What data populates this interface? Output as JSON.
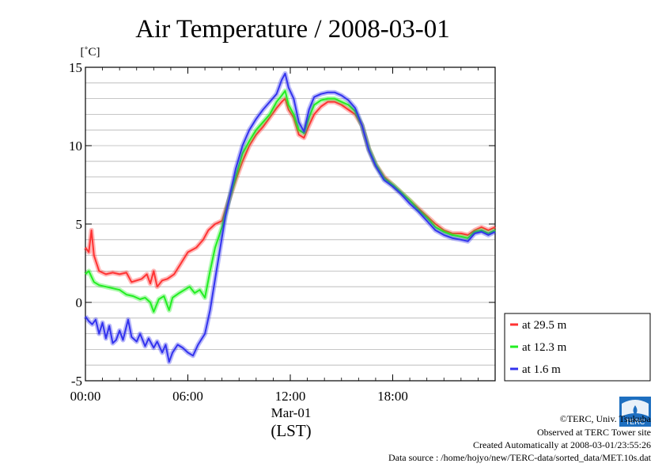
{
  "chart_data": {
    "type": "line",
    "title": "Air Temperature / 2008-03-01",
    "ylabel": "[˚C]",
    "xlabel": "(LST)",
    "x_sublabel": "Mar-01",
    "xlim": [
      0,
      24
    ],
    "ylim": [
      -5,
      15
    ],
    "yticks": [
      15,
      10,
      5,
      0,
      -5
    ],
    "xticks": [
      {
        "value": 0,
        "label": "00:00"
      },
      {
        "value": 6,
        "label": "06:00"
      },
      {
        "value": 12,
        "label": "12:00"
      },
      {
        "value": 18,
        "label": "18:00"
      }
    ],
    "grid": true,
    "legend_position": "bottom-right outside",
    "series": [
      {
        "name": "at 29.5 m",
        "color": "#ff3333",
        "points": [
          [
            0,
            3.5
          ],
          [
            0.2,
            3.2
          ],
          [
            0.35,
            4.6
          ],
          [
            0.5,
            3.0
          ],
          [
            0.8,
            2.0
          ],
          [
            1.2,
            1.8
          ],
          [
            1.6,
            1.9
          ],
          [
            2.0,
            1.8
          ],
          [
            2.4,
            1.9
          ],
          [
            2.7,
            1.3
          ],
          [
            3.0,
            1.4
          ],
          [
            3.3,
            1.5
          ],
          [
            3.6,
            1.8
          ],
          [
            3.8,
            1.2
          ],
          [
            4.0,
            2.0
          ],
          [
            4.2,
            1.0
          ],
          [
            4.5,
            1.4
          ],
          [
            4.8,
            1.5
          ],
          [
            5.2,
            1.8
          ],
          [
            5.6,
            2.5
          ],
          [
            6.0,
            3.2
          ],
          [
            6.5,
            3.5
          ],
          [
            6.9,
            4.0
          ],
          [
            7.2,
            4.6
          ],
          [
            7.6,
            5.0
          ],
          [
            8.0,
            5.2
          ],
          [
            8.4,
            6.5
          ],
          [
            8.8,
            7.8
          ],
          [
            9.2,
            9.0
          ],
          [
            9.6,
            10.0
          ],
          [
            10.0,
            10.7
          ],
          [
            10.4,
            11.2
          ],
          [
            10.8,
            11.8
          ],
          [
            11.2,
            12.4
          ],
          [
            11.5,
            12.8
          ],
          [
            11.7,
            13.0
          ],
          [
            11.9,
            12.3
          ],
          [
            12.2,
            11.8
          ],
          [
            12.5,
            10.7
          ],
          [
            12.8,
            10.5
          ],
          [
            13.1,
            11.3
          ],
          [
            13.4,
            12.0
          ],
          [
            13.8,
            12.5
          ],
          [
            14.2,
            12.8
          ],
          [
            14.6,
            12.8
          ],
          [
            15.0,
            12.6
          ],
          [
            15.4,
            12.3
          ],
          [
            15.8,
            12.0
          ],
          [
            16.2,
            11.3
          ],
          [
            16.6,
            9.8
          ],
          [
            17.0,
            8.8
          ],
          [
            17.5,
            8.0
          ],
          [
            18.0,
            7.5
          ],
          [
            18.5,
            7.0
          ],
          [
            19.0,
            6.5
          ],
          [
            19.5,
            6.0
          ],
          [
            20.0,
            5.5
          ],
          [
            20.5,
            5.0
          ],
          [
            21.0,
            4.6
          ],
          [
            21.5,
            4.4
          ],
          [
            22.0,
            4.4
          ],
          [
            22.4,
            4.3
          ],
          [
            22.8,
            4.6
          ],
          [
            23.2,
            4.8
          ],
          [
            23.6,
            4.6
          ],
          [
            24.0,
            4.8
          ]
        ]
      },
      {
        "name": "at 12.3 m",
        "color": "#22ee22",
        "points": [
          [
            0,
            1.8
          ],
          [
            0.2,
            2.0
          ],
          [
            0.5,
            1.3
          ],
          [
            0.8,
            1.1
          ],
          [
            1.2,
            1.0
          ],
          [
            1.6,
            0.9
          ],
          [
            2.0,
            0.8
          ],
          [
            2.4,
            0.5
          ],
          [
            2.8,
            0.4
          ],
          [
            3.2,
            0.2
          ],
          [
            3.5,
            0.3
          ],
          [
            3.8,
            0.0
          ],
          [
            4.0,
            -0.6
          ],
          [
            4.3,
            0.2
          ],
          [
            4.6,
            0.4
          ],
          [
            4.9,
            -0.5
          ],
          [
            5.1,
            0.3
          ],
          [
            5.5,
            0.6
          ],
          [
            5.8,
            0.8
          ],
          [
            6.1,
            1.0
          ],
          [
            6.4,
            0.6
          ],
          [
            6.7,
            0.8
          ],
          [
            7.0,
            0.3
          ],
          [
            7.3,
            2.0
          ],
          [
            7.6,
            3.5
          ],
          [
            8.0,
            4.8
          ],
          [
            8.4,
            6.5
          ],
          [
            8.8,
            8.0
          ],
          [
            9.2,
            9.5
          ],
          [
            9.6,
            10.3
          ],
          [
            10.0,
            11.0
          ],
          [
            10.4,
            11.5
          ],
          [
            10.8,
            12.0
          ],
          [
            11.2,
            12.8
          ],
          [
            11.5,
            13.2
          ],
          [
            11.7,
            13.5
          ],
          [
            11.9,
            12.6
          ],
          [
            12.2,
            12.0
          ],
          [
            12.5,
            11.0
          ],
          [
            12.8,
            10.8
          ],
          [
            13.1,
            11.8
          ],
          [
            13.4,
            12.6
          ],
          [
            13.8,
            12.9
          ],
          [
            14.2,
            13.0
          ],
          [
            14.6,
            13.0
          ],
          [
            15.0,
            12.8
          ],
          [
            15.4,
            12.6
          ],
          [
            15.8,
            12.2
          ],
          [
            16.2,
            11.3
          ],
          [
            16.6,
            9.8
          ],
          [
            17.0,
            8.8
          ],
          [
            17.5,
            7.9
          ],
          [
            18.0,
            7.5
          ],
          [
            18.5,
            7.0
          ],
          [
            19.0,
            6.5
          ],
          [
            19.5,
            5.9
          ],
          [
            20.0,
            5.4
          ],
          [
            20.5,
            4.8
          ],
          [
            21.0,
            4.5
          ],
          [
            21.5,
            4.3
          ],
          [
            22.0,
            4.2
          ],
          [
            22.4,
            4.1
          ],
          [
            22.8,
            4.5
          ],
          [
            23.2,
            4.6
          ],
          [
            23.6,
            4.4
          ],
          [
            24.0,
            4.6
          ]
        ]
      },
      {
        "name": "at 1.6 m",
        "color": "#3333ee",
        "points": [
          [
            0,
            -0.9
          ],
          [
            0.2,
            -1.2
          ],
          [
            0.4,
            -1.4
          ],
          [
            0.6,
            -1.1
          ],
          [
            0.8,
            -2.0
          ],
          [
            1.0,
            -1.3
          ],
          [
            1.2,
            -2.3
          ],
          [
            1.4,
            -1.5
          ],
          [
            1.6,
            -2.6
          ],
          [
            1.8,
            -2.4
          ],
          [
            2.0,
            -1.8
          ],
          [
            2.2,
            -2.4
          ],
          [
            2.5,
            -1.1
          ],
          [
            2.7,
            -2.2
          ],
          [
            3.0,
            -2.5
          ],
          [
            3.2,
            -2.0
          ],
          [
            3.5,
            -2.8
          ],
          [
            3.7,
            -2.3
          ],
          [
            4.0,
            -2.9
          ],
          [
            4.2,
            -2.5
          ],
          [
            4.5,
            -3.2
          ],
          [
            4.7,
            -2.7
          ],
          [
            4.9,
            -3.8
          ],
          [
            5.1,
            -3.2
          ],
          [
            5.4,
            -2.7
          ],
          [
            5.7,
            -2.9
          ],
          [
            6.0,
            -3.2
          ],
          [
            6.3,
            -3.4
          ],
          [
            6.6,
            -2.7
          ],
          [
            7.0,
            -2.0
          ],
          [
            7.3,
            -0.5
          ],
          [
            7.6,
            1.5
          ],
          [
            7.9,
            3.5
          ],
          [
            8.2,
            5.5
          ],
          [
            8.5,
            7.0
          ],
          [
            8.8,
            8.5
          ],
          [
            9.2,
            10.0
          ],
          [
            9.6,
            11.0
          ],
          [
            10.0,
            11.7
          ],
          [
            10.4,
            12.3
          ],
          [
            10.8,
            12.8
          ],
          [
            11.2,
            13.3
          ],
          [
            11.5,
            14.2
          ],
          [
            11.7,
            14.6
          ],
          [
            11.9,
            13.7
          ],
          [
            12.2,
            13.0
          ],
          [
            12.5,
            11.5
          ],
          [
            12.8,
            10.9
          ],
          [
            13.1,
            12.3
          ],
          [
            13.4,
            13.1
          ],
          [
            13.8,
            13.3
          ],
          [
            14.2,
            13.4
          ],
          [
            14.6,
            13.4
          ],
          [
            15.0,
            13.2
          ],
          [
            15.4,
            12.9
          ],
          [
            15.8,
            12.4
          ],
          [
            16.2,
            11.3
          ],
          [
            16.6,
            9.7
          ],
          [
            17.0,
            8.7
          ],
          [
            17.5,
            7.8
          ],
          [
            18.0,
            7.4
          ],
          [
            18.5,
            6.9
          ],
          [
            19.0,
            6.3
          ],
          [
            19.5,
            5.8
          ],
          [
            20.0,
            5.2
          ],
          [
            20.5,
            4.6
          ],
          [
            21.0,
            4.3
          ],
          [
            21.5,
            4.1
          ],
          [
            22.0,
            4.0
          ],
          [
            22.4,
            3.9
          ],
          [
            22.8,
            4.4
          ],
          [
            23.2,
            4.5
          ],
          [
            23.6,
            4.3
          ],
          [
            24.0,
            4.5
          ]
        ]
      }
    ]
  },
  "credits": {
    "copyright": "©TERC, Univ. Tsukuba",
    "observed": "Observed at TERC Tower site",
    "created": "Created Automatically at 2008-03-01/23:55:26",
    "source": "Data source : /home/hojyo/new/TERC-data/sorted_data/MET.10s.dat",
    "logo_text": "TERC"
  }
}
